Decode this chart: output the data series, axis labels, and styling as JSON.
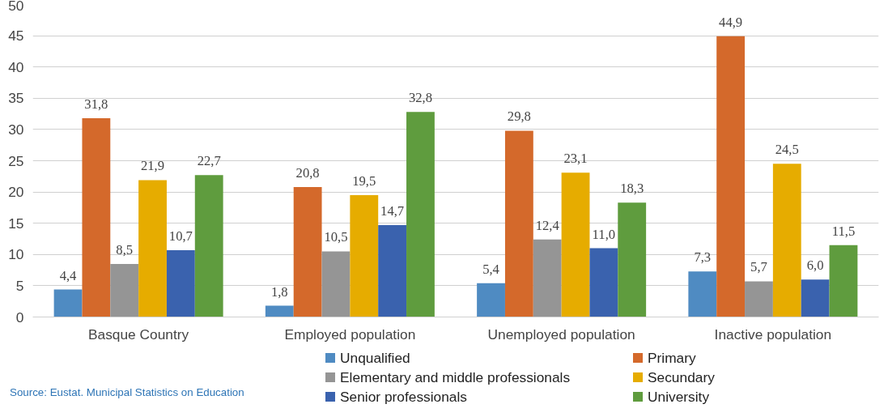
{
  "chart_data": {
    "type": "bar",
    "categories": [
      "Basque Country",
      "Employed population",
      "Unemployed population",
      "Inactive population"
    ],
    "series": [
      {
        "name": "Unqualified",
        "color": "#4f8bc2",
        "values": [
          4.4,
          1.8,
          5.4,
          7.3
        ],
        "value_labels": [
          "4,4",
          "1,8",
          "5,4",
          "7,3"
        ]
      },
      {
        "name": "Primary",
        "color": "#d4692b",
        "values": [
          31.8,
          20.8,
          29.8,
          44.9
        ],
        "value_labels": [
          "31,8",
          "20,8",
          "29,8",
          "44,9"
        ]
      },
      {
        "name": "Elementary and middle professionals",
        "color": "#959595",
        "values": [
          8.5,
          10.5,
          12.4,
          5.7
        ],
        "value_labels": [
          "8,5",
          "10,5",
          "12,4",
          "5,7"
        ]
      },
      {
        "name": "Secundary",
        "color": "#e6ac00",
        "values": [
          21.9,
          19.5,
          23.1,
          24.5
        ],
        "value_labels": [
          "21,9",
          "19,5",
          "23,1",
          "24,5"
        ]
      },
      {
        "name": "Senior professionals",
        "color": "#3a62ae",
        "values": [
          10.7,
          14.7,
          11.0,
          6.0
        ],
        "value_labels": [
          "10,7",
          "14,7",
          "11,0",
          "6,0"
        ]
      },
      {
        "name": "University",
        "color": "#5f9c3e",
        "values": [
          22.7,
          32.8,
          18.3,
          11.5
        ],
        "value_labels": [
          "22,7",
          "32,8",
          "18,3",
          "11,5"
        ]
      }
    ],
    "ylim": [
      0,
      50
    ],
    "yticks": [
      0,
      5,
      10,
      15,
      20,
      25,
      30,
      35,
      40,
      45,
      50
    ],
    "grid": "y",
    "legend": "bottom",
    "annotations": [
      "Source: Eustat. Municipal Statistics on Education"
    ]
  }
}
